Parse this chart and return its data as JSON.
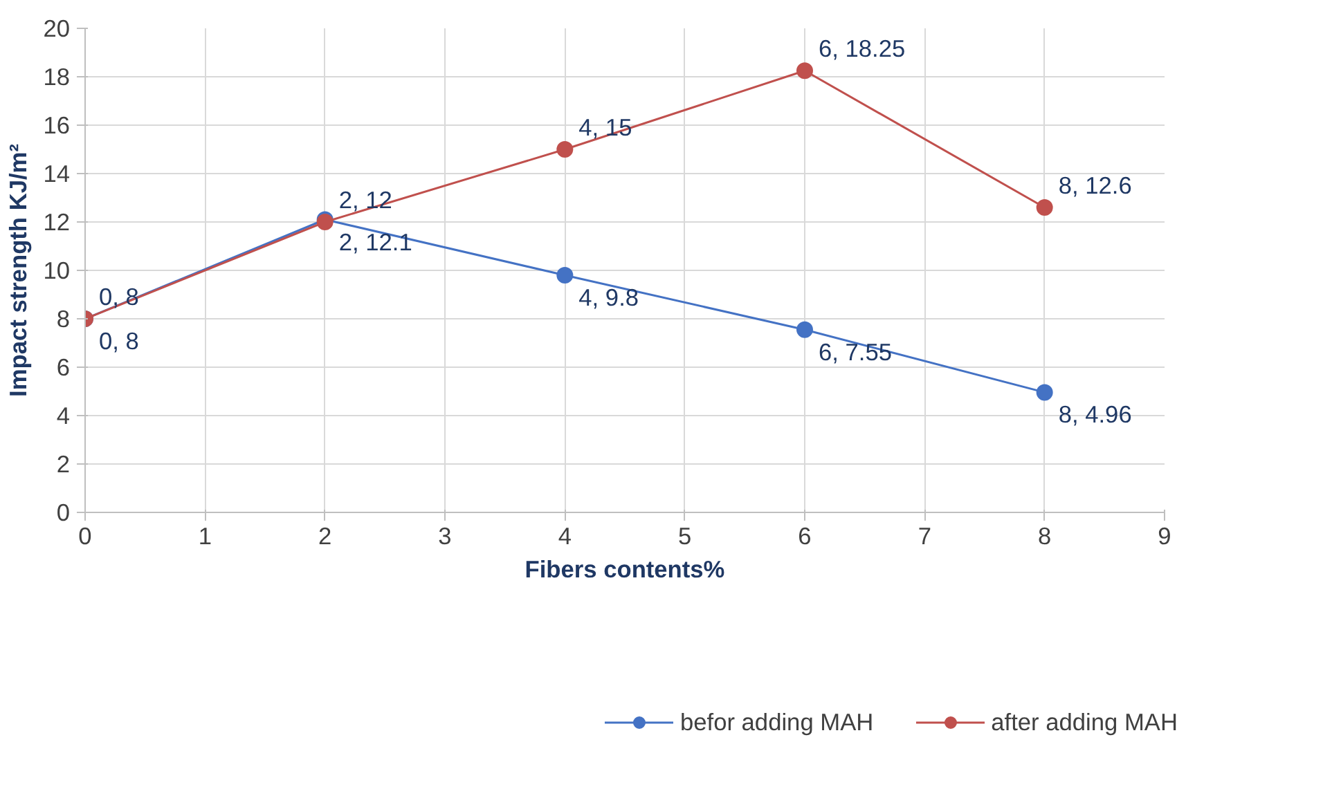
{
  "chart_data": {
    "type": "line",
    "xlabel": "Fibers contents%",
    "ylabel": "Impact strength KJ/m²",
    "x": [
      0,
      2,
      4,
      6,
      8
    ],
    "series": [
      {
        "name": "befor adding MAH",
        "color": "#4472c4",
        "values": [
          8,
          12.1,
          9.8,
          7.55,
          4.96
        ],
        "value_labels": [
          "0, 8",
          "2, 12.1",
          "4, 9.8",
          "6, 7.55",
          "8, 4.96"
        ]
      },
      {
        "name": "after adding MAH",
        "color": "#c0504d",
        "values": [
          8,
          12,
          15,
          18.25,
          12.6
        ],
        "value_labels": [
          "0, 8",
          "2, 12",
          "4, 15",
          "6, 18.25",
          "8, 12.6"
        ]
      }
    ],
    "xlim": [
      0,
      9
    ],
    "ylim": [
      0,
      20
    ],
    "xticks": [
      0,
      1,
      2,
      3,
      4,
      5,
      6,
      7,
      8,
      9
    ],
    "yticks": [
      0,
      2,
      4,
      6,
      8,
      10,
      12,
      14,
      16,
      18,
      20
    ],
    "grid": true,
    "legend": "bottom",
    "marker": "circle",
    "line_style": "solid"
  }
}
